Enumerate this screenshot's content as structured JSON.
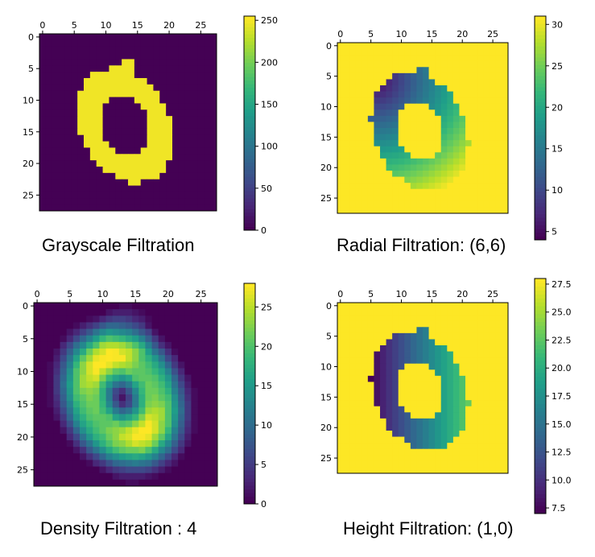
{
  "chart_data": [
    {
      "type": "heatmap",
      "title": "Grayscale Filtration",
      "grid_size": 28,
      "xticks": [
        0,
        5,
        10,
        15,
        20,
        25
      ],
      "yticks": [
        0,
        5,
        10,
        15,
        20,
        25
      ],
      "xlim": [
        0,
        27
      ],
      "ylim": [
        27,
        0
      ],
      "colorbar": {
        "min": 0,
        "max": 255,
        "ticks": [
          0,
          50,
          100,
          150,
          200,
          250
        ]
      },
      "colormap": "viridis",
      "shape": {
        "kind": "ring",
        "cx": 13.5,
        "cy": 14.5,
        "rx_out": 7.0,
        "ry_out": 9.5,
        "rx_in": 3.6,
        "ry_in": 5.0,
        "tilt": -25,
        "spike": {
          "x": 14,
          "y": 4
        }
      },
      "values_description": "digit zero: ring values near 250, background 0"
    },
    {
      "type": "heatmap",
      "title": "Radial Filtration: (6,6)",
      "grid_size": 28,
      "xticks": [
        0,
        5,
        10,
        15,
        20,
        25
      ],
      "yticks": [
        0,
        5,
        10,
        15,
        20,
        25
      ],
      "xlim": [
        0,
        27
      ],
      "ylim": [
        27,
        0
      ],
      "colorbar": {
        "min": 4,
        "max": 31,
        "ticks": [
          5,
          10,
          15,
          20,
          25,
          30
        ]
      },
      "colormap": "viridis",
      "center": {
        "x": 6,
        "y": 6
      },
      "shape": {
        "kind": "filled",
        "cx": 13.5,
        "cy": 14.5,
        "rx_out": 7.5,
        "ry_out": 10.0,
        "rx_in": 3.8,
        "ry_in": 4.8,
        "tilt": -25,
        "spike": {
          "x": 14,
          "y": 4
        }
      }
    },
    {
      "type": "heatmap",
      "title": "Density Filtration : 4",
      "grid_size": 28,
      "xticks": [
        0,
        5,
        10,
        15,
        20,
        25
      ],
      "yticks": [
        0,
        5,
        10,
        15,
        20,
        25
      ],
      "xlim": [
        0,
        27
      ],
      "ylim": [
        27,
        0
      ],
      "colorbar": {
        "min": 0,
        "max": 28,
        "ticks": [
          0,
          5,
          10,
          15,
          20,
          25
        ]
      },
      "colormap": "viridis",
      "shape": {
        "kind": "density",
        "cx": 13.5,
        "cy": 14.5,
        "rx_out": 7.0,
        "ry_out": 9.5,
        "rx_in": 3.6,
        "ry_in": 5.0,
        "tilt": -25,
        "spike": {
          "x": 14,
          "y": 4
        }
      }
    },
    {
      "type": "heatmap",
      "title": "Height Filtration: (1,0)",
      "grid_size": 28,
      "xticks": [
        0,
        5,
        10,
        15,
        20,
        25
      ],
      "yticks": [
        0,
        5,
        10,
        15,
        20,
        25
      ],
      "xlim": [
        0,
        27
      ],
      "ylim": [
        27,
        0
      ],
      "colorbar": {
        "min": 7,
        "max": 28,
        "ticks": [
          7.5,
          10.0,
          12.5,
          15.0,
          17.5,
          20.0,
          22.5,
          25.0,
          27.5
        ]
      },
      "colormap": "viridis",
      "direction": {
        "x": 1,
        "y": 0
      },
      "shape": {
        "kind": "filled",
        "cx": 13.5,
        "cy": 14.5,
        "rx_out": 7.5,
        "ry_out": 10.0,
        "rx_in": 3.8,
        "ry_in": 4.8,
        "tilt": -25,
        "spike": {
          "x": 14,
          "y": 4
        }
      }
    }
  ]
}
